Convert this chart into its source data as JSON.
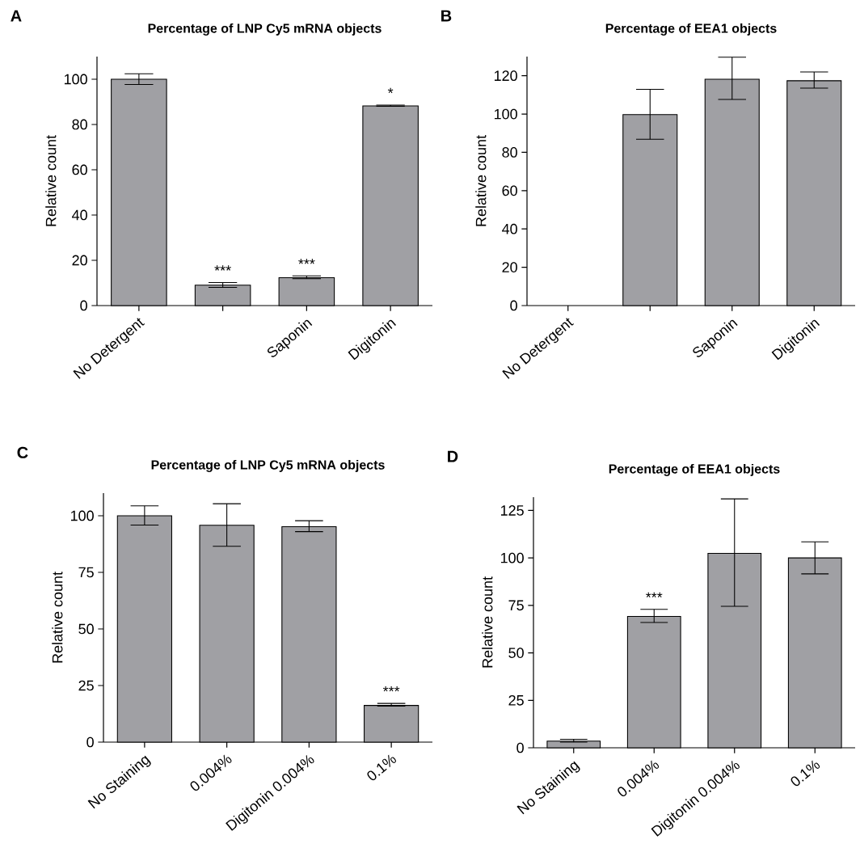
{
  "chart_data": [
    {
      "type": "bar",
      "title": "Percentage of LNP Cy5 mRNA objects",
      "ylabel": "Relative count",
      "annotations": [
        "A"
      ],
      "categories": [
        "No Detergent",
        null,
        "Saponin",
        "Digitonin"
      ],
      "values": [
        100,
        9.0,
        12.3,
        88.2
      ],
      "errors": [
        [
          97.7,
          102.4
        ],
        [
          8.0,
          10.2
        ],
        [
          11.9,
          13.1
        ],
        [
          88.0,
          88.6
        ]
      ],
      "value_labels": [
        null,
        "***",
        "***",
        "*"
      ],
      "color": "#a0a0a4",
      "ylim": [
        0,
        110
      ],
      "yticks": [
        0,
        20,
        40,
        60,
        80,
        100
      ]
    },
    {
      "type": "bar",
      "title": "Percentage of EEA1 objects",
      "ylabel": "Relative count",
      "annotations": [
        "B"
      ],
      "categories": [
        "No Detergent",
        null,
        "Saponin",
        "Digitonin"
      ],
      "values": [
        null,
        99.7,
        118.2,
        117.4
      ],
      "errors": [
        null,
        [
          86.8,
          112.9
        ],
        [
          107.6,
          129.7
        ],
        [
          113.5,
          122.0
        ]
      ],
      "color": "#a0a0a4",
      "ylim": [
        0,
        130
      ],
      "yticks": [
        0,
        20,
        40,
        60,
        80,
        100,
        120
      ]
    },
    {
      "type": "bar",
      "title": "Percentage of LNP Cy5 mRNA objects",
      "ylabel": "Relative count",
      "annotations": [
        "C"
      ],
      "categories": [
        "No Staining",
        "0.004%",
        "Digitonin 0.004%",
        "0.1%"
      ],
      "values": [
        100,
        95.8,
        95.2,
        16.2
      ],
      "errors": [
        [
          95.9,
          104.4
        ],
        [
          86.5,
          105.3
        ],
        [
          93.0,
          97.8
        ],
        [
          15.9,
          17.1
        ]
      ],
      "value_labels": [
        null,
        null,
        null,
        "***"
      ],
      "color": "#a0a0a4",
      "ylim": [
        0,
        110
      ],
      "yticks": [
        0,
        25,
        50,
        75,
        100
      ]
    },
    {
      "type": "bar",
      "title": "Percentage of EEA1 objects",
      "ylabel": "Relative count",
      "annotations": [
        "D"
      ],
      "categories": [
        "No Staining",
        "0.004%",
        "Digitonin 0.004%",
        "0.1%"
      ],
      "values": [
        3.5,
        69.2,
        102.4,
        100
      ],
      "errors": [
        [
          3.0,
          4.5
        ],
        [
          66.0,
          72.9
        ],
        [
          74.5,
          131.1
        ],
        [
          91.6,
          108.5
        ]
      ],
      "value_labels": [
        null,
        "***",
        null,
        null
      ],
      "color": "#a0a0a4",
      "ylim": [
        0,
        132
      ],
      "yticks": [
        0,
        25,
        50,
        75,
        100,
        125
      ]
    }
  ]
}
